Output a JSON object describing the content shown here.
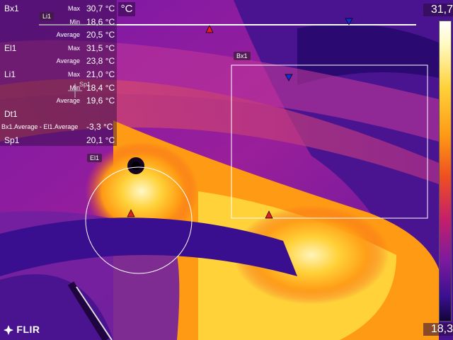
{
  "unit": "°C",
  "scale": {
    "max": "31,7",
    "min": "18,3"
  },
  "measurements": [
    {
      "name": "Bx1",
      "stat": "Max",
      "value": "30,7 °C"
    },
    {
      "name": "",
      "stat": "Min",
      "value": "18,6 °C"
    },
    {
      "name": "",
      "stat": "Average",
      "value": "20,5 °C"
    },
    {
      "name": "El1",
      "stat": "Max",
      "value": "31,5 °C"
    },
    {
      "name": "",
      "stat": "Average",
      "value": "23,8 °C"
    },
    {
      "name": "Li1",
      "stat": "Max",
      "value": "21,0 °C"
    },
    {
      "name": "",
      "stat": "Min",
      "value": "18,4 °C"
    },
    {
      "name": "",
      "stat": "Average",
      "value": "19,6 °C"
    },
    {
      "name": "Dt1",
      "stat": "",
      "value": ""
    },
    {
      "name": "",
      "stat": "Bx1.Average - El1.Average",
      "value": "-3,3 °C"
    },
    {
      "name": "Sp1",
      "stat": "",
      "value": "20,1 °C"
    }
  ],
  "tags": {
    "li1": "Li1",
    "bx1": "Bx1",
    "el1": "El1",
    "sp1": "Sp1"
  },
  "brand": "FLIR",
  "colors": {
    "hot": "#fff3b0",
    "warm": "#ff9a14",
    "mid": "#c51f6a",
    "cold": "#3a0f8f",
    "max_marker": "#e02020",
    "min_marker": "#1030d0"
  }
}
